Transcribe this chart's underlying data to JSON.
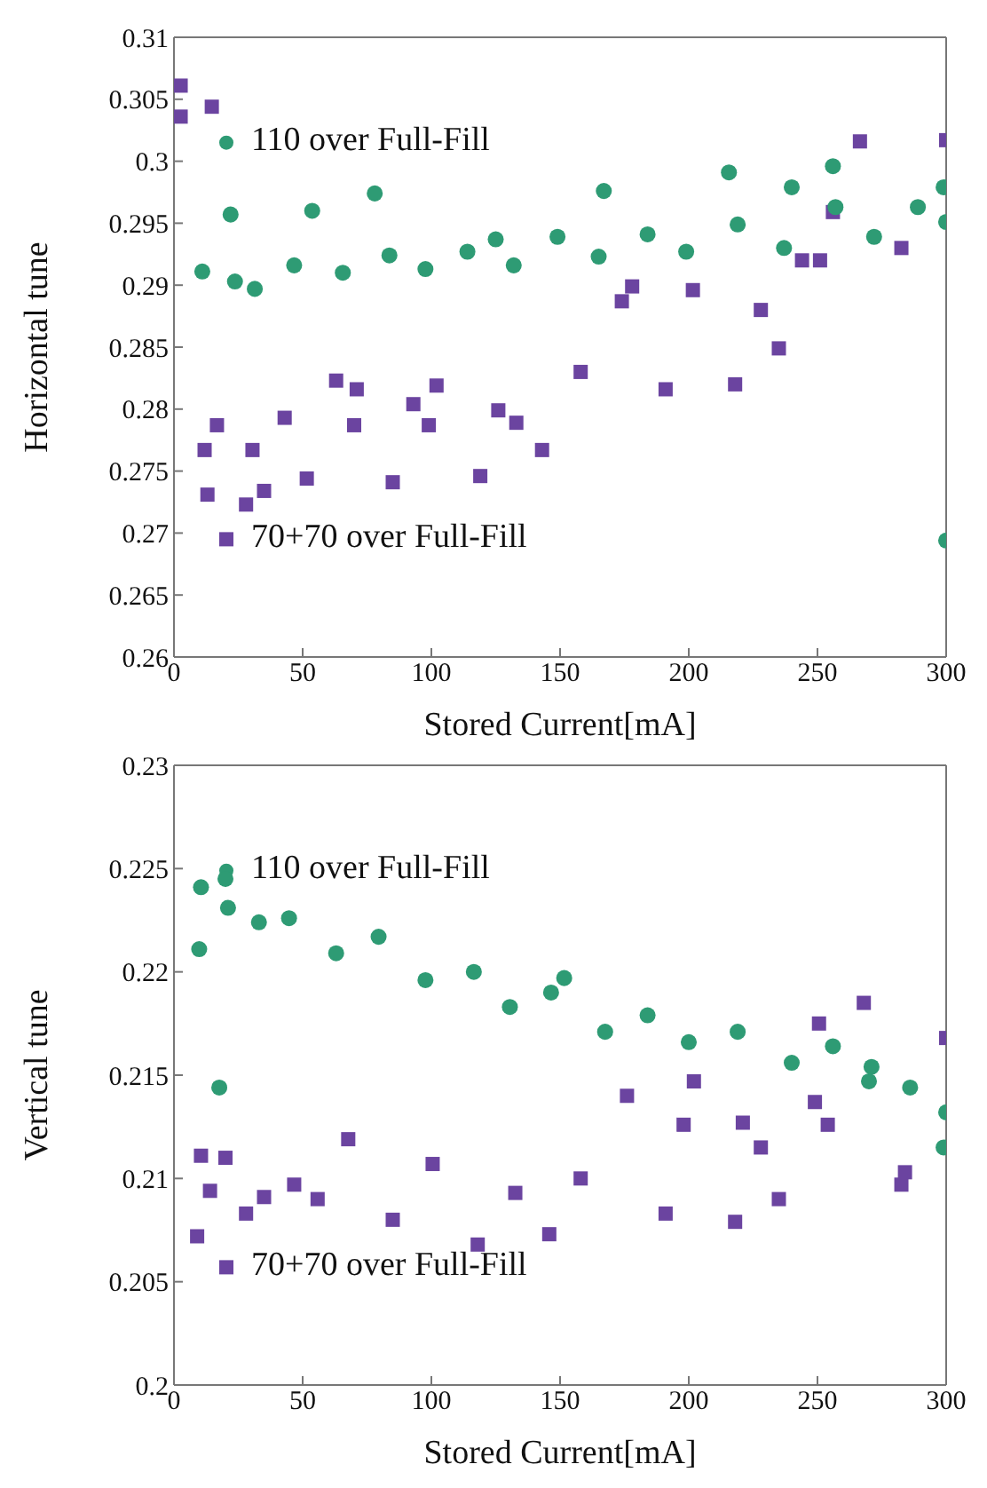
{
  "chart_data": [
    {
      "type": "scatter",
      "xlabel": "Stored Current[mA]",
      "ylabel": "Horizontal tune",
      "xlim": [
        0,
        300
      ],
      "xticks": [
        0,
        50,
        100,
        150,
        200,
        250,
        300
      ],
      "ylim": [
        0.26,
        0.31
      ],
      "yticks": [
        0.26,
        0.265,
        0.27,
        0.275,
        0.28,
        0.285,
        0.29,
        0.295,
        0.3,
        0.305,
        0.31
      ],
      "legend": "top left",
      "series": [
        {
          "name": "110 over Full-Fill",
          "color": "#2e9b74",
          "marker": "circle",
          "x": [
            11,
            22,
            23.7,
            31.4,
            46.7,
            53.7,
            65.6,
            78,
            83.7,
            97.7,
            114,
            125,
            132,
            149,
            165,
            167,
            184,
            199,
            215.6,
            219,
            237,
            240,
            256,
            257,
            272,
            289,
            299,
            300,
            300
          ],
          "values": [
            0.2911,
            0.2957,
            0.2903,
            0.2897,
            0.2916,
            0.296,
            0.291,
            0.2974,
            0.2924,
            0.2913,
            0.2927,
            0.2937,
            0.2916,
            0.2939,
            0.2923,
            0.2976,
            0.2941,
            0.2927,
            0.2991,
            0.2949,
            0.293,
            0.2979,
            0.2996,
            0.2963,
            0.2939,
            0.2963,
            0.2979,
            0.2951,
            0.2694
          ]
        },
        {
          "name": "70+70 over Full-Fill",
          "color": "#6b44a0",
          "marker": "square",
          "x": [
            2.6,
            2.6,
            11.9,
            13,
            14.7,
            16.7,
            28,
            30.5,
            35,
            43,
            51.6,
            63,
            70,
            71,
            85,
            93,
            99,
            102,
            119,
            126,
            133,
            143,
            158,
            174,
            178,
            191,
            201.6,
            218,
            228,
            235,
            244,
            251,
            256,
            266.5,
            282.6,
            300
          ],
          "values": [
            0.3061,
            0.3036,
            0.2767,
            0.2731,
            0.3044,
            0.2787,
            0.2723,
            0.2767,
            0.2734,
            0.2793,
            0.2744,
            0.2823,
            0.2787,
            0.2816,
            0.2741,
            0.2804,
            0.2787,
            0.2819,
            0.2746,
            0.2799,
            0.2789,
            0.2767,
            0.283,
            0.2887,
            0.2899,
            0.2816,
            0.2896,
            0.282,
            0.288,
            0.2849,
            0.292,
            0.292,
            0.2959,
            0.3016,
            0.293,
            0.3017
          ]
        }
      ]
    },
    {
      "type": "scatter",
      "xlabel": "Stored Current[mA]",
      "ylabel": "Vertical tune",
      "xlim": [
        0,
        300
      ],
      "xticks": [
        0,
        50,
        100,
        150,
        200,
        250,
        300
      ],
      "ylim": [
        0.2,
        0.23
      ],
      "yticks": [
        0.2,
        0.205,
        0.21,
        0.215,
        0.22,
        0.225,
        0.23
      ],
      "legend": "top left",
      "series": [
        {
          "name": "110 over Full-Fill",
          "color": "#2e9b74",
          "marker": "circle",
          "x": [
            9.8,
            10.5,
            17.6,
            20,
            21,
            33,
            44.7,
            63,
            79.5,
            97.7,
            116.5,
            130.5,
            146.5,
            151.6,
            167.5,
            184,
            200,
            219,
            240,
            256,
            270,
            271,
            286,
            299,
            300
          ],
          "values": [
            0.2211,
            0.2241,
            0.2144,
            0.2245,
            0.2231,
            0.2224,
            0.2226,
            0.2209,
            0.2217,
            0.2196,
            0.22,
            0.2183,
            0.219,
            0.2197,
            0.2171,
            0.2179,
            0.2166,
            0.2171,
            0.2156,
            0.2164,
            0.2147,
            0.2154,
            0.2144,
            0.2115,
            0.2132
          ]
        },
        {
          "name": "70+70 over Full-Fill",
          "color": "#6b44a0",
          "marker": "square",
          "x": [
            9,
            10.5,
            14,
            20,
            28,
            35,
            46.7,
            55.8,
            67.7,
            85,
            100.5,
            118,
            132.6,
            145.8,
            158,
            176,
            191,
            198,
            202,
            218,
            221,
            228,
            235,
            249,
            250.6,
            254,
            268,
            282.6,
            284,
            300
          ],
          "values": [
            0.2072,
            0.2111,
            0.2094,
            0.211,
            0.2083,
            0.2091,
            0.2097,
            0.209,
            0.2119,
            0.208,
            0.2107,
            0.2068,
            0.2093,
            0.2073,
            0.21,
            0.214,
            0.2083,
            0.2126,
            0.2147,
            0.2079,
            0.2127,
            0.2115,
            0.209,
            0.2137,
            0.2175,
            0.2126,
            0.2185,
            0.2097,
            0.2103,
            0.2168
          ]
        }
      ]
    }
  ]
}
